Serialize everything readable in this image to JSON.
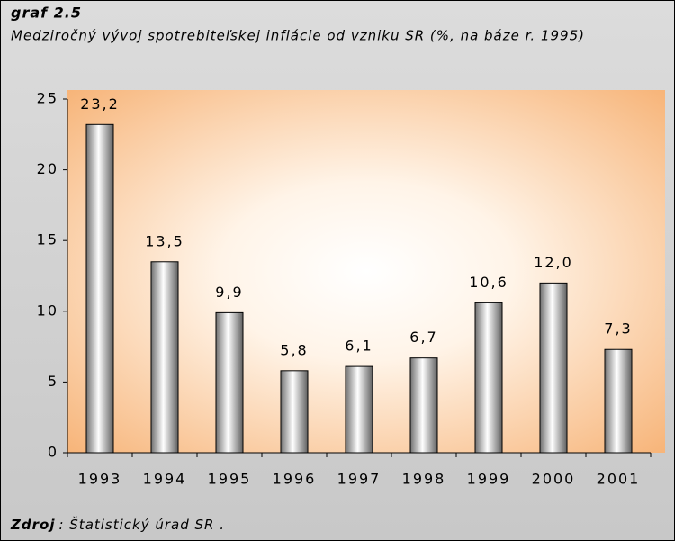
{
  "chart_data": {
    "type": "bar",
    "title": "graf 2.5",
    "subtitle": "Medziročný vývoj spotrebiteľskej inflácie od vzniku SR (%, na báze r. 1995)",
    "source_label": "Zdroj",
    "source": ": Štatistický úrad SR .",
    "categories": [
      "1993",
      "1994",
      "1995",
      "1996",
      "1997",
      "1998",
      "1999",
      "2000",
      "2001"
    ],
    "values": [
      23.2,
      13.5,
      9.9,
      5.8,
      6.1,
      6.7,
      10.6,
      12.0,
      7.3
    ],
    "value_labels": [
      "23,2",
      "13,5",
      "9,9",
      "5,8",
      "6,1",
      "6,7",
      "10,6",
      "12,0",
      "7,3"
    ],
    "color": "#c0c0c0",
    "ylim": [
      0,
      25
    ],
    "yticks": [
      0,
      5,
      10,
      15,
      20,
      25
    ],
    "grid": false
  }
}
